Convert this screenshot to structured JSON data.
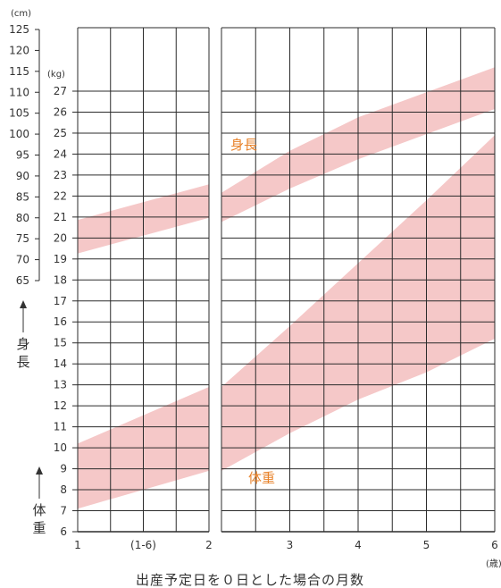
{
  "chart_data": {
    "type": "area",
    "height_axis": {
      "unit": "(cm)",
      "ticks": [
        125,
        120,
        115,
        110,
        105,
        100,
        95,
        90,
        85,
        80,
        75,
        70,
        65
      ],
      "range": [
        65,
        125
      ],
      "label_chars": [
        "身",
        "長"
      ]
    },
    "weight_axis": {
      "unit": "(kg)",
      "ticks": [
        27,
        26,
        25,
        24,
        23,
        22,
        21,
        20,
        19,
        18,
        17,
        16,
        15,
        14,
        13,
        12,
        11,
        10,
        9,
        8,
        7,
        6
      ],
      "range": [
        6,
        27
      ],
      "label_chars": [
        "体",
        "重"
      ]
    },
    "x_axis": {
      "title": "出産予定日を０日とした場合の月数",
      "unit": "(歳)",
      "tick_labels": [
        "1",
        "(1-6)",
        "2",
        "3",
        "4",
        "5",
        "6"
      ],
      "left_panel_years": [
        1,
        2
      ],
      "right_panel_years": [
        2,
        6
      ]
    },
    "grid": true,
    "series": [
      {
        "name": "身長",
        "axis": "height",
        "color": "#f5c8c8",
        "label_color": "#e8822a",
        "x": [
          1,
          2,
          2,
          3,
          4,
          5,
          6
        ],
        "upper": [
          79.5,
          88,
          86,
          96,
          104,
          110,
          116
        ],
        "lower": [
          71.5,
          80,
          79,
          87,
          94,
          100,
          106
        ]
      },
      {
        "name": "体重",
        "axis": "weight",
        "color": "#f5c8c8",
        "label_color": "#e8822a",
        "x": [
          1,
          2,
          2,
          3,
          4,
          5,
          6
        ],
        "upper": [
          10.2,
          12.9,
          12.9,
          15.8,
          18.8,
          21.8,
          24.9
        ],
        "lower": [
          7.1,
          8.9,
          8.9,
          10.7,
          12.3,
          13.6,
          15.2
        ]
      }
    ]
  }
}
